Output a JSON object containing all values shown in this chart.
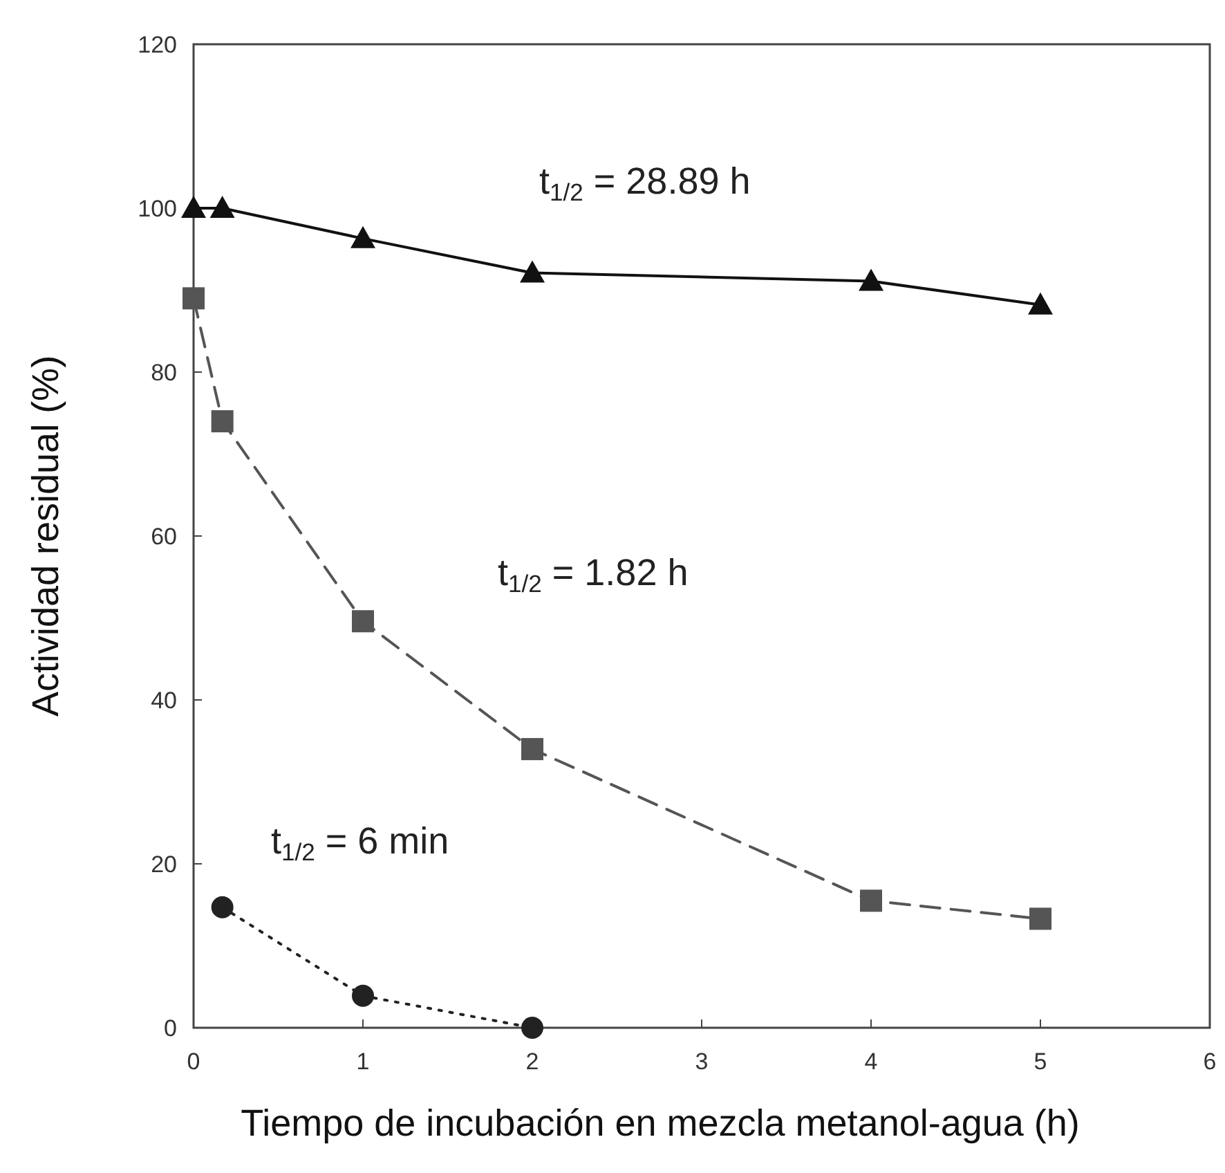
{
  "chart_data": {
    "type": "line",
    "xlabel": "Tiempo de incubación en mezcla metanol-agua (h)",
    "ylabel": "Actividad residual (%)",
    "xlim": [
      0,
      6
    ],
    "xticks": [
      0,
      1,
      2,
      3,
      4,
      5,
      6
    ],
    "ylim": [
      0,
      120
    ],
    "yticks": [
      0,
      20,
      40,
      60,
      80,
      100,
      120
    ],
    "grid": false,
    "series": [
      {
        "color": "#111111",
        "marker": "triangle",
        "line_style": "solid",
        "x": [
          0,
          0.17,
          1,
          2,
          4,
          5
        ],
        "values": [
          100,
          100,
          96.3,
          92.1,
          91.1,
          88.2
        ]
      },
      {
        "color": "#555555",
        "marker": "square",
        "line_style": "dashed",
        "x": [
          0,
          0.17,
          1,
          2,
          4,
          5
        ],
        "values": [
          89,
          74,
          49.6,
          34,
          15.5,
          13.3
        ]
      },
      {
        "color": "#222222",
        "marker": "circle",
        "line_style": "dotted",
        "x": [
          0.17,
          1,
          2
        ],
        "values": [
          14.7,
          3.9,
          0
        ]
      }
    ],
    "annotations": [
      "t$_{1/2}$ = 28.89 h",
      "t$_{1/2}$ = 1.82 h",
      "t$_{1/2}$ = 6 min"
    ]
  }
}
